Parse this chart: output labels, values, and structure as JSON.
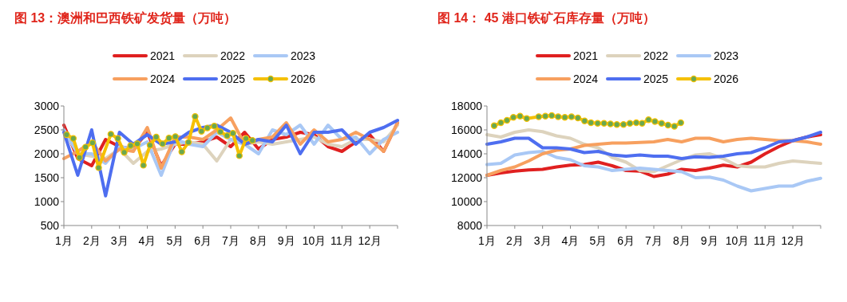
{
  "chart_data": [
    {
      "type": "line",
      "title": "图 13：澳洲和巴西铁矿发货量（万吨）",
      "x": [
        1,
        1.5,
        2,
        2.5,
        3,
        3.5,
        4,
        4.5,
        5,
        5.5,
        6,
        6.5,
        7,
        7.5,
        8,
        8.5,
        9,
        9.5,
        10,
        10.5,
        11,
        11.5,
        12,
        12.5,
        13
      ],
      "xlim": [
        1,
        13
      ],
      "xticks": [
        {
          "value": 1,
          "label": "1月"
        },
        {
          "value": 2,
          "label": "2月"
        },
        {
          "value": 3,
          "label": "3月"
        },
        {
          "value": 4,
          "label": "4月"
        },
        {
          "value": 5,
          "label": "5月"
        },
        {
          "value": 6,
          "label": "6月"
        },
        {
          "value": 7,
          "label": "7月"
        },
        {
          "value": 8,
          "label": "8月"
        },
        {
          "value": 9,
          "label": "9月"
        },
        {
          "value": 10,
          "label": "10月"
        },
        {
          "value": 11,
          "label": "11月"
        },
        {
          "value": 12,
          "label": "12月"
        },
        {
          "value": 13,
          "label": null
        }
      ],
      "ylim": [
        500,
        3000
      ],
      "yticks": [
        500,
        1000,
        1500,
        2000,
        2500,
        3000
      ],
      "legend": "top",
      "grid": false,
      "series": [
        {
          "name": "2021",
          "color": "#e02020",
          "values": [
            2600,
            1900,
            1750,
            2300,
            2150,
            2100,
            2450,
            1750,
            2200,
            2200,
            2250,
            2350,
            2150,
            2450,
            2100,
            2300,
            2350,
            2450,
            2400,
            2150,
            2050,
            2250,
            2400,
            2050,
            2650
          ]
        },
        {
          "name": "2022",
          "color": "#ddd3bd",
          "values": [
            2500,
            2000,
            1950,
            1900,
            2100,
            1800,
            2050,
            2100,
            2200,
            2250,
            2200,
            1850,
            2300,
            2200,
            2250,
            2200,
            2250,
            2300,
            2350,
            2200,
            2150,
            2300,
            2300,
            2250,
            2600
          ]
        },
        {
          "name": "2023",
          "color": "#a9c8f5",
          "values": [
            2500,
            2000,
            2000,
            1800,
            2150,
            2100,
            2250,
            1550,
            2300,
            2200,
            2150,
            2450,
            2300,
            2200,
            2000,
            2500,
            2400,
            2600,
            2200,
            2600,
            2300,
            2350,
            2000,
            2300,
            2450
          ]
        },
        {
          "name": "2024",
          "color": "#f7a05f",
          "values": [
            1900,
            2050,
            2250,
            1850,
            2100,
            2050,
            2550,
            1700,
            2350,
            2350,
            2300,
            2500,
            2750,
            2200,
            2300,
            2350,
            2650,
            2200,
            2500,
            2250,
            2300,
            2450,
            2300,
            2050,
            2650
          ]
        },
        {
          "name": "2025",
          "color": "#4e6ef0",
          "values": [
            2450,
            1550,
            2500,
            1120,
            2450,
            2200,
            2400,
            2200,
            2250,
            2450,
            2550,
            2600,
            2450,
            2200,
            2300,
            2250,
            2600,
            2000,
            2450,
            2450,
            2500,
            2200,
            2450,
            2550,
            2700
          ]
        },
        {
          "name": "2026",
          "color": "#f5c000",
          "colors": [
            "#6aa84f",
            "#6aa84f",
            "#6aa84f",
            "#6aa84f",
            "#6aa84f",
            "#6aa84f",
            "#6aa84f",
            "#6aa84f",
            "#6aa84f",
            "#6aa84f",
            "#6aa84f",
            "#6aa84f",
            "#6aa84f",
            "#6aa84f",
            "#6aa84f",
            "#6aa84f",
            "#6aa84f",
            "#6aa84f",
            "#6aa84f",
            "#6aa84f",
            "#6aa84f",
            "#6aa84f",
            "#6aa84f",
            "#6aa84f",
            "#6aa84f",
            "#6aa84f",
            "#6aa84f",
            "#6aa84f",
            "#6aa84f"
          ],
          "marker": "circle",
          "x": [
            1.1,
            1.34,
            1.56,
            1.78,
            2.03,
            2.25,
            2.69,
            2.94,
            3.17,
            3.4,
            3.64,
            3.86,
            4.1,
            4.32,
            4.55,
            4.78,
            5.01,
            5.24,
            5.48,
            5.72,
            5.95,
            6.16,
            6.41,
            6.63,
            6.87,
            7.08,
            7.31,
            7.55,
            7.78
          ],
          "values": [
            2400,
            2320,
            1920,
            2140,
            2230,
            1710,
            2410,
            2320,
            2030,
            2170,
            2210,
            1760,
            2180,
            2350,
            2210,
            2330,
            2360,
            2040,
            2240,
            2780,
            2470,
            2540,
            2580,
            2460,
            2380,
            2430,
            1960,
            2320,
            2280
          ]
        }
      ]
    },
    {
      "type": "line",
      "title": "图 14： 45 港口铁矿石库存量（万吨）",
      "x": [
        1,
        1.5,
        2,
        2.5,
        3,
        3.5,
        4,
        4.5,
        5,
        5.5,
        6,
        6.5,
        7,
        7.5,
        8,
        8.5,
        9,
        9.5,
        10,
        10.5,
        11,
        11.5,
        12,
        12.5,
        13
      ],
      "xlim": [
        1,
        13
      ],
      "xticks": [
        {
          "value": 1,
          "label": "1月"
        },
        {
          "value": 2,
          "label": "2月"
        },
        {
          "value": 3,
          "label": "3月"
        },
        {
          "value": 4,
          "label": "4月"
        },
        {
          "value": 5,
          "label": "5月"
        },
        {
          "value": 6,
          "label": "6月"
        },
        {
          "value": 7,
          "label": "7月"
        },
        {
          "value": 8,
          "label": "8月"
        },
        {
          "value": 9,
          "label": "9月"
        },
        {
          "value": 10,
          "label": "10月"
        },
        {
          "value": 11,
          "label": "11月"
        },
        {
          "value": 12,
          "label": "12月"
        },
        {
          "value": 13,
          "label": null
        }
      ],
      "ylim": [
        8000,
        18000
      ],
      "yticks": [
        8000,
        10000,
        12000,
        14000,
        16000,
        18000
      ],
      "legend": "top",
      "grid": false,
      "series": [
        {
          "name": "2021",
          "color": "#e02020",
          "values": [
            12200,
            12400,
            12550,
            12650,
            12700,
            12900,
            13050,
            13100,
            13300,
            13000,
            12600,
            12550,
            12100,
            12300,
            12700,
            12600,
            12800,
            13050,
            12900,
            13300,
            14000,
            14600,
            15100,
            15400,
            15600
          ]
        },
        {
          "name": "2022",
          "color": "#ddd3bd",
          "values": [
            15600,
            15400,
            15800,
            16000,
            15850,
            15500,
            15300,
            14800,
            14500,
            13700,
            13300,
            12600,
            12500,
            13000,
            13500,
            13900,
            14000,
            13600,
            13000,
            12900,
            12900,
            13200,
            13400,
            13300,
            13200
          ]
        },
        {
          "name": "2023",
          "color": "#a9c8f5",
          "values": [
            13100,
            13200,
            13900,
            14100,
            14200,
            13700,
            13500,
            13000,
            12900,
            12600,
            12700,
            12800,
            12700,
            12600,
            12500,
            12000,
            12050,
            11800,
            11300,
            10900,
            11100,
            11300,
            11300,
            11700,
            11950
          ]
        },
        {
          "name": "2024",
          "color": "#f7a05f",
          "values": [
            12200,
            12600,
            12900,
            13400,
            14000,
            14300,
            14400,
            14700,
            14800,
            14900,
            14900,
            14950,
            15000,
            15200,
            15000,
            15300,
            15300,
            15000,
            15200,
            15300,
            15200,
            15100,
            15100,
            15000,
            14800
          ]
        },
        {
          "name": "2025",
          "color": "#4e6ef0",
          "values": [
            14800,
            15000,
            15300,
            15300,
            14500,
            14500,
            14400,
            14100,
            14200,
            13900,
            13800,
            13900,
            13800,
            13800,
            13600,
            13750,
            13700,
            13800,
            14000,
            14100,
            14500,
            15000,
            15100,
            15400,
            15800
          ]
        },
        {
          "name": "2026",
          "color": "#f5c000",
          "colors": [
            "#6aa84f",
            "#6aa84f",
            "#6aa84f",
            "#6aa84f",
            "#6aa84f",
            "#6aa84f",
            "#6aa84f",
            "#6aa84f",
            "#6aa84f",
            "#6aa84f",
            "#6aa84f",
            "#6aa84f",
            "#6aa84f",
            "#6aa84f",
            "#6aa84f",
            "#6aa84f",
            "#6aa84f",
            "#6aa84f",
            "#6aa84f",
            "#6aa84f",
            "#6aa84f",
            "#6aa84f",
            "#6aa84f",
            "#6aa84f",
            "#6aa84f",
            "#6aa84f",
            "#6aa84f",
            "#6aa84f",
            "#6aa84f"
          ],
          "marker": "circle",
          "x": [
            1.26,
            1.5,
            1.72,
            1.95,
            2.19,
            2.43,
            2.86,
            3.1,
            3.33,
            3.56,
            3.8,
            4.04,
            4.27,
            4.51,
            4.74,
            4.98,
            5.21,
            5.44,
            5.67,
            5.91,
            6.14,
            6.37,
            6.58,
            6.81,
            7.04,
            7.28,
            7.51,
            7.74,
            7.97
          ],
          "values": [
            16350,
            16600,
            16800,
            17050,
            17150,
            16950,
            17100,
            17150,
            17200,
            17100,
            17050,
            17100,
            17000,
            16750,
            16600,
            16550,
            16550,
            16500,
            16450,
            16450,
            16550,
            16600,
            16550,
            16850,
            16700,
            16550,
            16400,
            16300,
            16600
          ]
        }
      ]
    }
  ]
}
